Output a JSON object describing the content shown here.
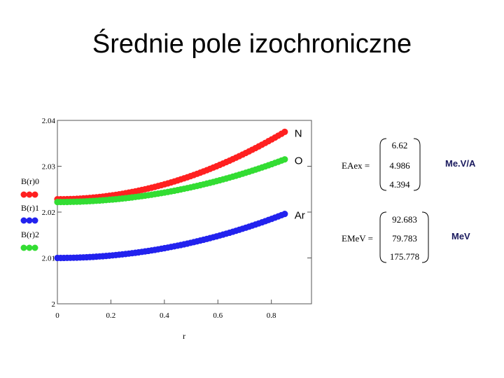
{
  "slide": {
    "title": "Średnie pole izochroniczne"
  },
  "chart_data": {
    "type": "scatter",
    "xlabel": "r",
    "xlim": [
      0,
      0.95
    ],
    "ylim": [
      2,
      2.04
    ],
    "xticks": [
      "0",
      "0.2",
      "0.4",
      "0.6",
      "0.8"
    ],
    "yticks": [
      "2",
      "2.01",
      "2.02",
      "2.03",
      "2.04"
    ],
    "legend_labels": [
      "B(r)0",
      "B(r)1",
      "B(r)2"
    ],
    "series": [
      {
        "name": "N",
        "color": "#ff2020",
        "label": "N",
        "start": 2.0228,
        "end": 2.0375
      },
      {
        "name": "O",
        "color": "#33dd33",
        "label": "O",
        "start": 2.0222,
        "end": 2.0315
      },
      {
        "name": "Ar",
        "color": "#2222ee",
        "label": "Ar",
        "start": 2.01,
        "end": 2.0196
      }
    ],
    "curve_x_max": 0.85
  },
  "matrices": {
    "eaex": {
      "label": "EAex =",
      "values": [
        "6.62",
        "4.986",
        "4.394"
      ],
      "unit": "Me.V/A"
    },
    "emev": {
      "label": "EMeV =",
      "values": [
        "92.683",
        "79.783",
        "175.778"
      ],
      "unit": "MeV"
    }
  }
}
